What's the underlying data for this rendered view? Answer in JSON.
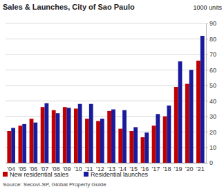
{
  "chart_data": {
    "type": "bar",
    "title": "Sales & Launches, City of Sao Paulo",
    "ylabel": "1000 units",
    "source": "Source: Secovi-SP, Global Property Guide",
    "categories": [
      "'04",
      "'05",
      "'06",
      "'07",
      "'08",
      "'09",
      "'10",
      "'11",
      "'12",
      "'13",
      "'14",
      "'15",
      "'16",
      "'17",
      "'18",
      "'19",
      "'20",
      "'21"
    ],
    "series": [
      {
        "name": "New residential sales",
        "color": "#c00000",
        "values": [
          20.5,
          24,
          28.5,
          36,
          34,
          36,
          35,
          28.5,
          27,
          33.5,
          22,
          20.5,
          16.5,
          24,
          30,
          49,
          51,
          66
        ]
      },
      {
        "name": "Residential launches",
        "color": "#1a1a9c",
        "values": [
          22.5,
          25,
          26,
          38.5,
          32,
          35.5,
          38,
          38,
          28.5,
          34.5,
          34,
          23,
          19.5,
          31.5,
          37,
          65.5,
          60,
          82
        ]
      }
    ],
    "ylim": [
      0,
      90
    ],
    "yticks": [
      0,
      10,
      20,
      30,
      40,
      50,
      60,
      70,
      80,
      90
    ],
    "grid": true,
    "legend": "bottom"
  }
}
